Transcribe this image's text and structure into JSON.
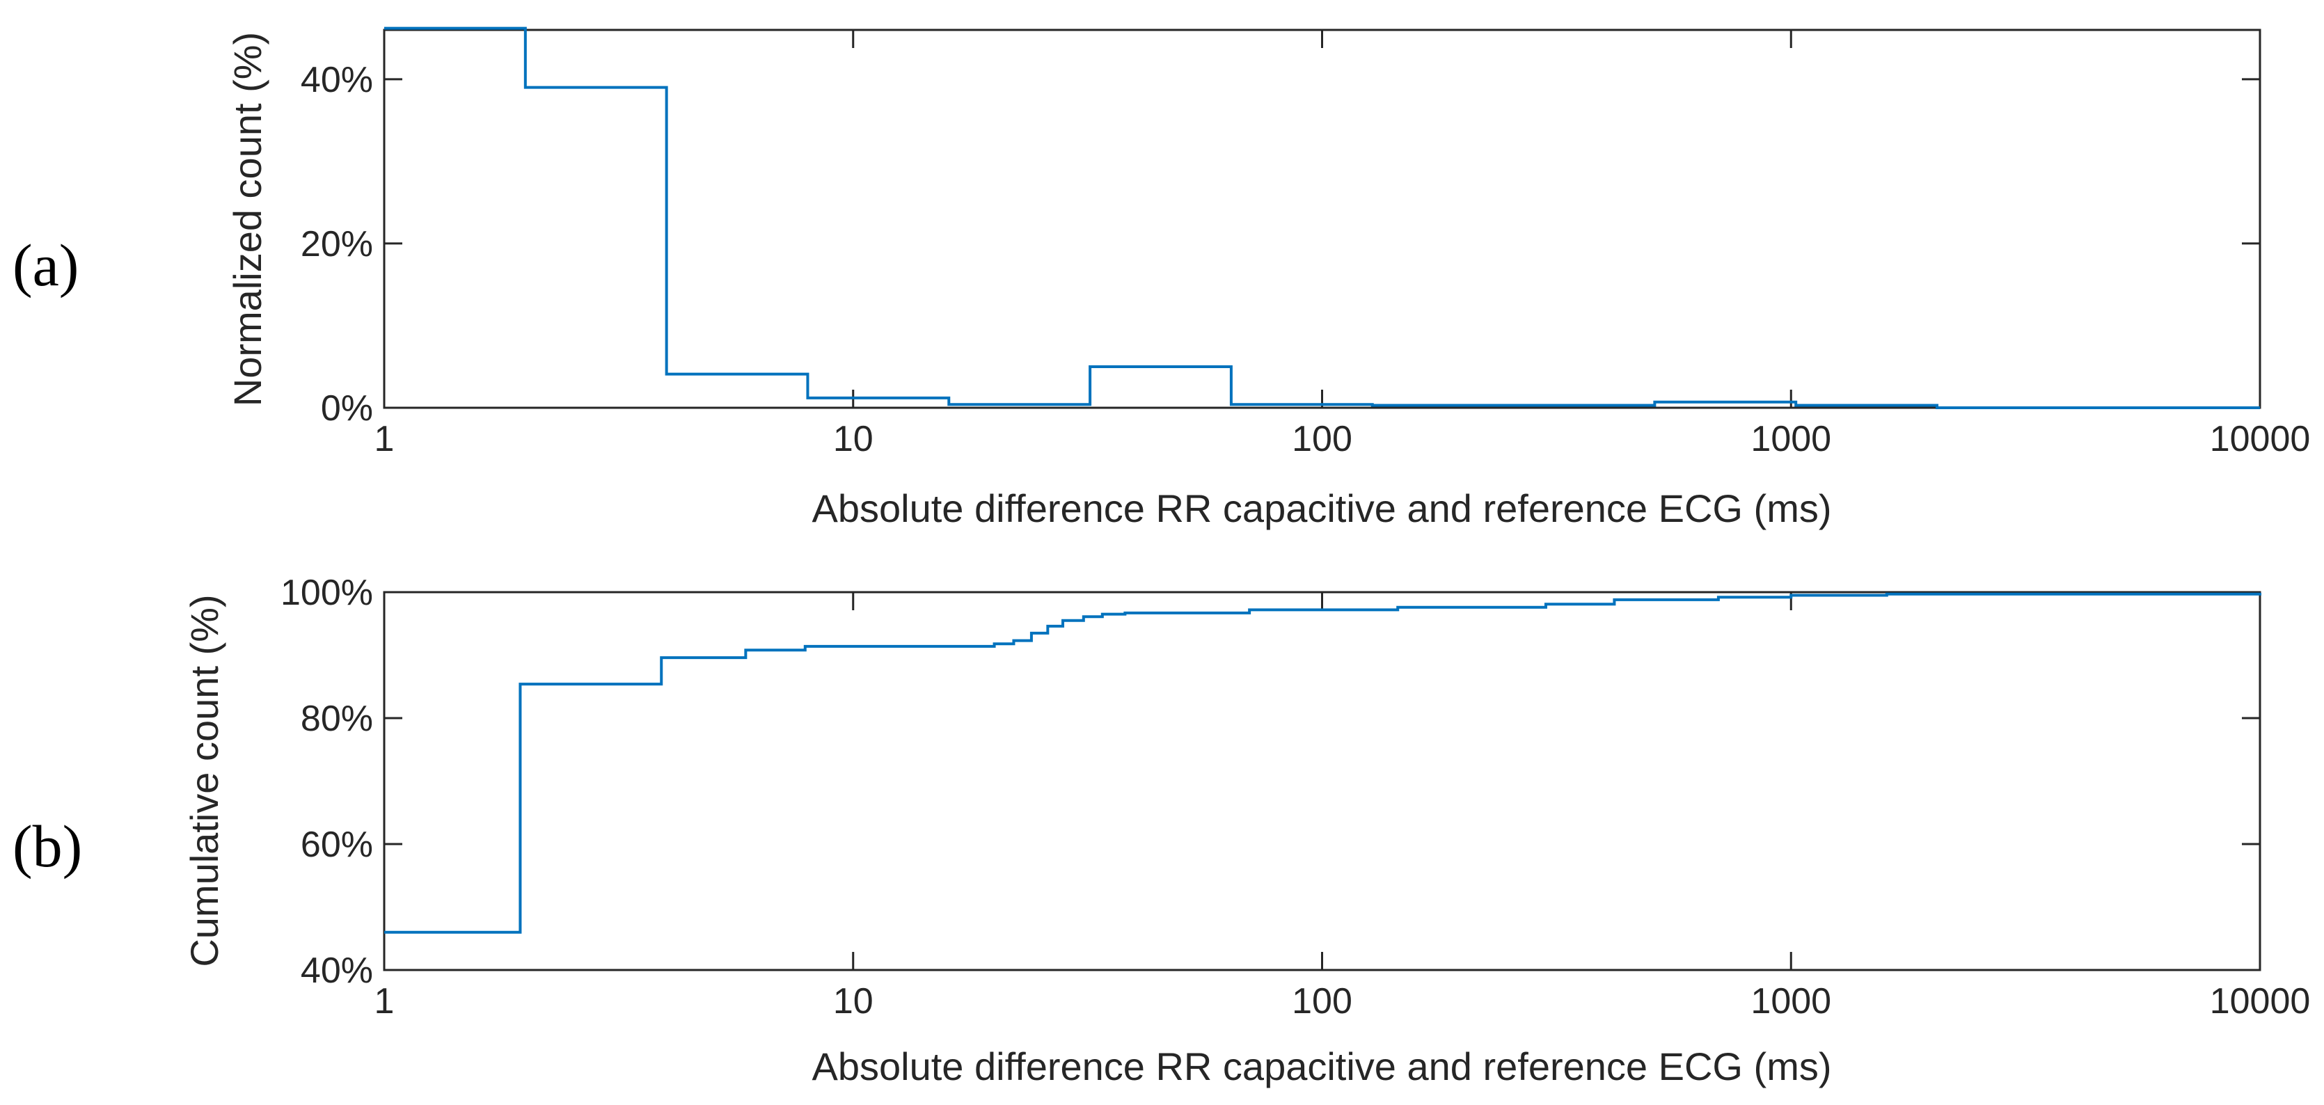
{
  "colors": {
    "series": "#0072BD",
    "axes": "#262626",
    "background": "#ffffff"
  },
  "chart_data": [
    {
      "type": "histogram",
      "panel_label": "(a)",
      "xlabel": "Absolute difference RR capacitive and reference ECG (ms)",
      "ylabel": "Normalized count  (%)",
      "xscale": "log",
      "xlim": [
        1,
        10000
      ],
      "ylim": [
        0,
        46
      ],
      "xticks": [
        1,
        10,
        100,
        1000,
        10000
      ],
      "xtick_labels": [
        "1",
        "10",
        "100",
        "1000",
        "10000"
      ],
      "yticks": [
        0,
        20,
        40
      ],
      "ytick_labels": [
        "0%",
        "20%",
        "40%"
      ],
      "bin_edges": [
        1,
        2,
        4,
        8,
        16,
        32,
        64,
        128,
        256,
        512,
        1024,
        2048,
        4096,
        8192,
        10000
      ],
      "values": [
        46.2,
        39.0,
        4.1,
        1.2,
        0.4,
        5.0,
        0.4,
        0.3,
        0.3,
        0.7,
        0.3,
        0.0,
        0.0,
        0.0
      ]
    },
    {
      "type": "line",
      "step": true,
      "panel_label": "(b)",
      "xlabel": "Absolute difference RR capacitive and reference ECG (ms)",
      "ylabel": "Cumulative count  (%)",
      "xscale": "log",
      "xlim": [
        1,
        10000
      ],
      "ylim": [
        40,
        100
      ],
      "xticks": [
        1,
        10,
        100,
        1000,
        10000
      ],
      "xtick_labels": [
        "1",
        "10",
        "100",
        "1000",
        "10000"
      ],
      "yticks": [
        40,
        60,
        80,
        100
      ],
      "ytick_labels": [
        "40%",
        "60%",
        "80%",
        "100%"
      ],
      "x": [
        1,
        1.95,
        3.9,
        5.9,
        7.9,
        20,
        22,
        24,
        26,
        28,
        31,
        34,
        38,
        70,
        145,
        300,
        420,
        700,
        1000,
        1600,
        10000
      ],
      "y": [
        46.0,
        85.4,
        89.6,
        90.8,
        91.4,
        91.8,
        92.3,
        93.5,
        94.6,
        95.5,
        96.1,
        96.5,
        96.7,
        97.2,
        97.6,
        98.1,
        98.8,
        99.2,
        99.5,
        99.7,
        99.9
      ]
    }
  ]
}
